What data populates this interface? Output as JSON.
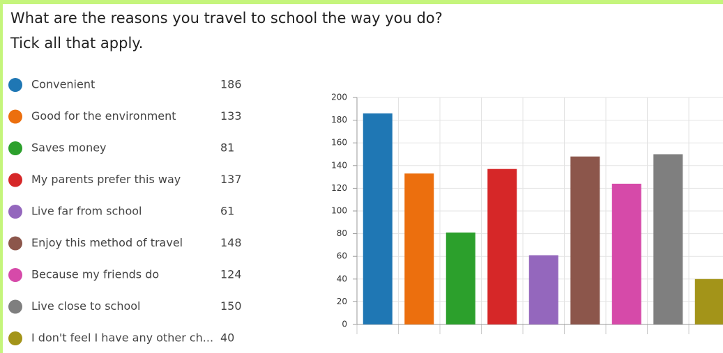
{
  "chart_data": {
    "type": "bar",
    "title": "What are the reasons you travel to school the way you do?",
    "subtitle": "Tick all that apply.",
    "categories": [
      "Convenient",
      "Good for the environment",
      "Saves money",
      "My parents prefer this way",
      "Live far from school",
      "Enjoy this method of travel",
      "Because my friends do",
      "Live close to school",
      "I don't feel I have any other ch..."
    ],
    "values": [
      186,
      133,
      81,
      137,
      61,
      148,
      124,
      150,
      40
    ],
    "colors": [
      "#1f77b4",
      "#ec6f0e",
      "#2ca02c",
      "#d62728",
      "#9467bd",
      "#8c564b",
      "#d64aa9",
      "#7f7f7f",
      "#a39419"
    ],
    "ylim": [
      0,
      200
    ],
    "yticks": [
      0,
      20,
      40,
      60,
      80,
      100,
      120,
      140,
      160,
      180,
      200
    ],
    "grid": true
  }
}
